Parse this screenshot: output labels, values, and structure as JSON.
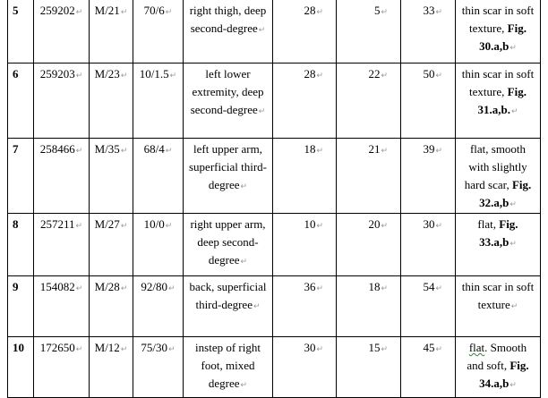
{
  "rows": [
    {
      "no": "5",
      "id": "259202",
      "sex_age": "M/21",
      "area": "70/6",
      "site": "right thigh, deep second-degree",
      "a": "28",
      "b": "5",
      "c": "33",
      "result": "thin scar in soft texture,",
      "fig": "Fig. 30.a,b"
    },
    {
      "no": "6",
      "id": "259203",
      "sex_age": "M/23",
      "area": "10/1.5",
      "site": "left lower extremity, deep second-degree",
      "a": "28",
      "b": "22",
      "c": "50",
      "result": "thin scar in soft texture,",
      "fig": "Fig. 31.a,b."
    },
    {
      "no": "7",
      "id": "258466",
      "sex_age": "M/35",
      "area": "68/4",
      "site": "left upper arm, superficial third-degree",
      "a": "18",
      "b": "21",
      "c": "39",
      "result": "flat, smooth with slightly hard scar,",
      "fig": "Fig. 32.a,b"
    },
    {
      "no": "8",
      "id": "257211",
      "sex_age": "M/27",
      "area": "10/0",
      "site": "right upper arm, deep second-degree",
      "a": "10",
      "b": "20",
      "c": "30",
      "result": "flat,",
      "fig": "Fig. 33.a,b"
    },
    {
      "no": "9",
      "id": "154082",
      "sex_age": "M/28",
      "area": "92/80",
      "site": "back, superficial third-degree",
      "a": "36",
      "b": "18",
      "c": "54",
      "result": "thin scar in soft texture",
      "fig": ""
    },
    {
      "no": "10",
      "id": "172650",
      "sex_age": "M/12",
      "area": "75/30",
      "site": "instep of right foot, mixed degree",
      "a": "30",
      "b": "15",
      "c": "45",
      "result_underlined": "flat",
      "result": ". Smooth and soft,",
      "fig": "Fig. 34.a,b"
    }
  ]
}
